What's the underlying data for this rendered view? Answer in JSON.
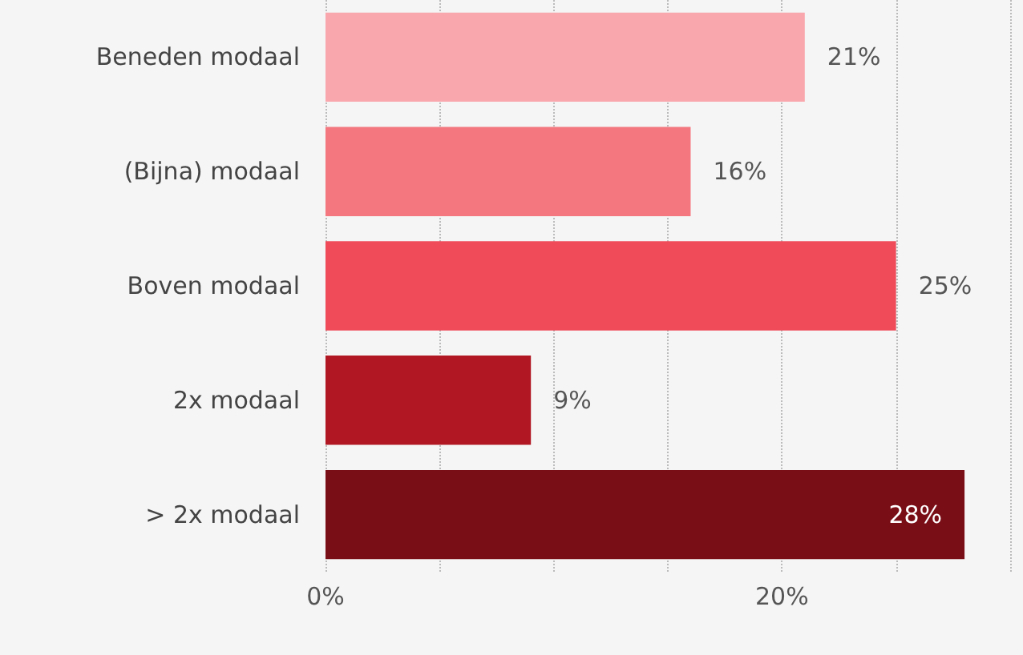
{
  "chart_data": {
    "type": "bar",
    "orientation": "horizontal",
    "categories": [
      "Beneden modaal",
      "(Bijna) modaal",
      "Boven modaal",
      "2x modaal",
      "> 2x modaal"
    ],
    "values": [
      21,
      16,
      25,
      9,
      28
    ],
    "colors": [
      "#f9a7ad",
      "#f4777f",
      "#ef4b59",
      "#b01722",
      "#7a0e17"
    ],
    "value_labels": [
      "21%",
      "16%",
      "25%",
      "9%",
      "28%"
    ],
    "xlim": [
      0,
      30
    ],
    "xticks": [
      {
        "value": 0,
        "label": "0%"
      },
      {
        "value": 20,
        "label": "20%"
      }
    ],
    "grid": "x"
  }
}
